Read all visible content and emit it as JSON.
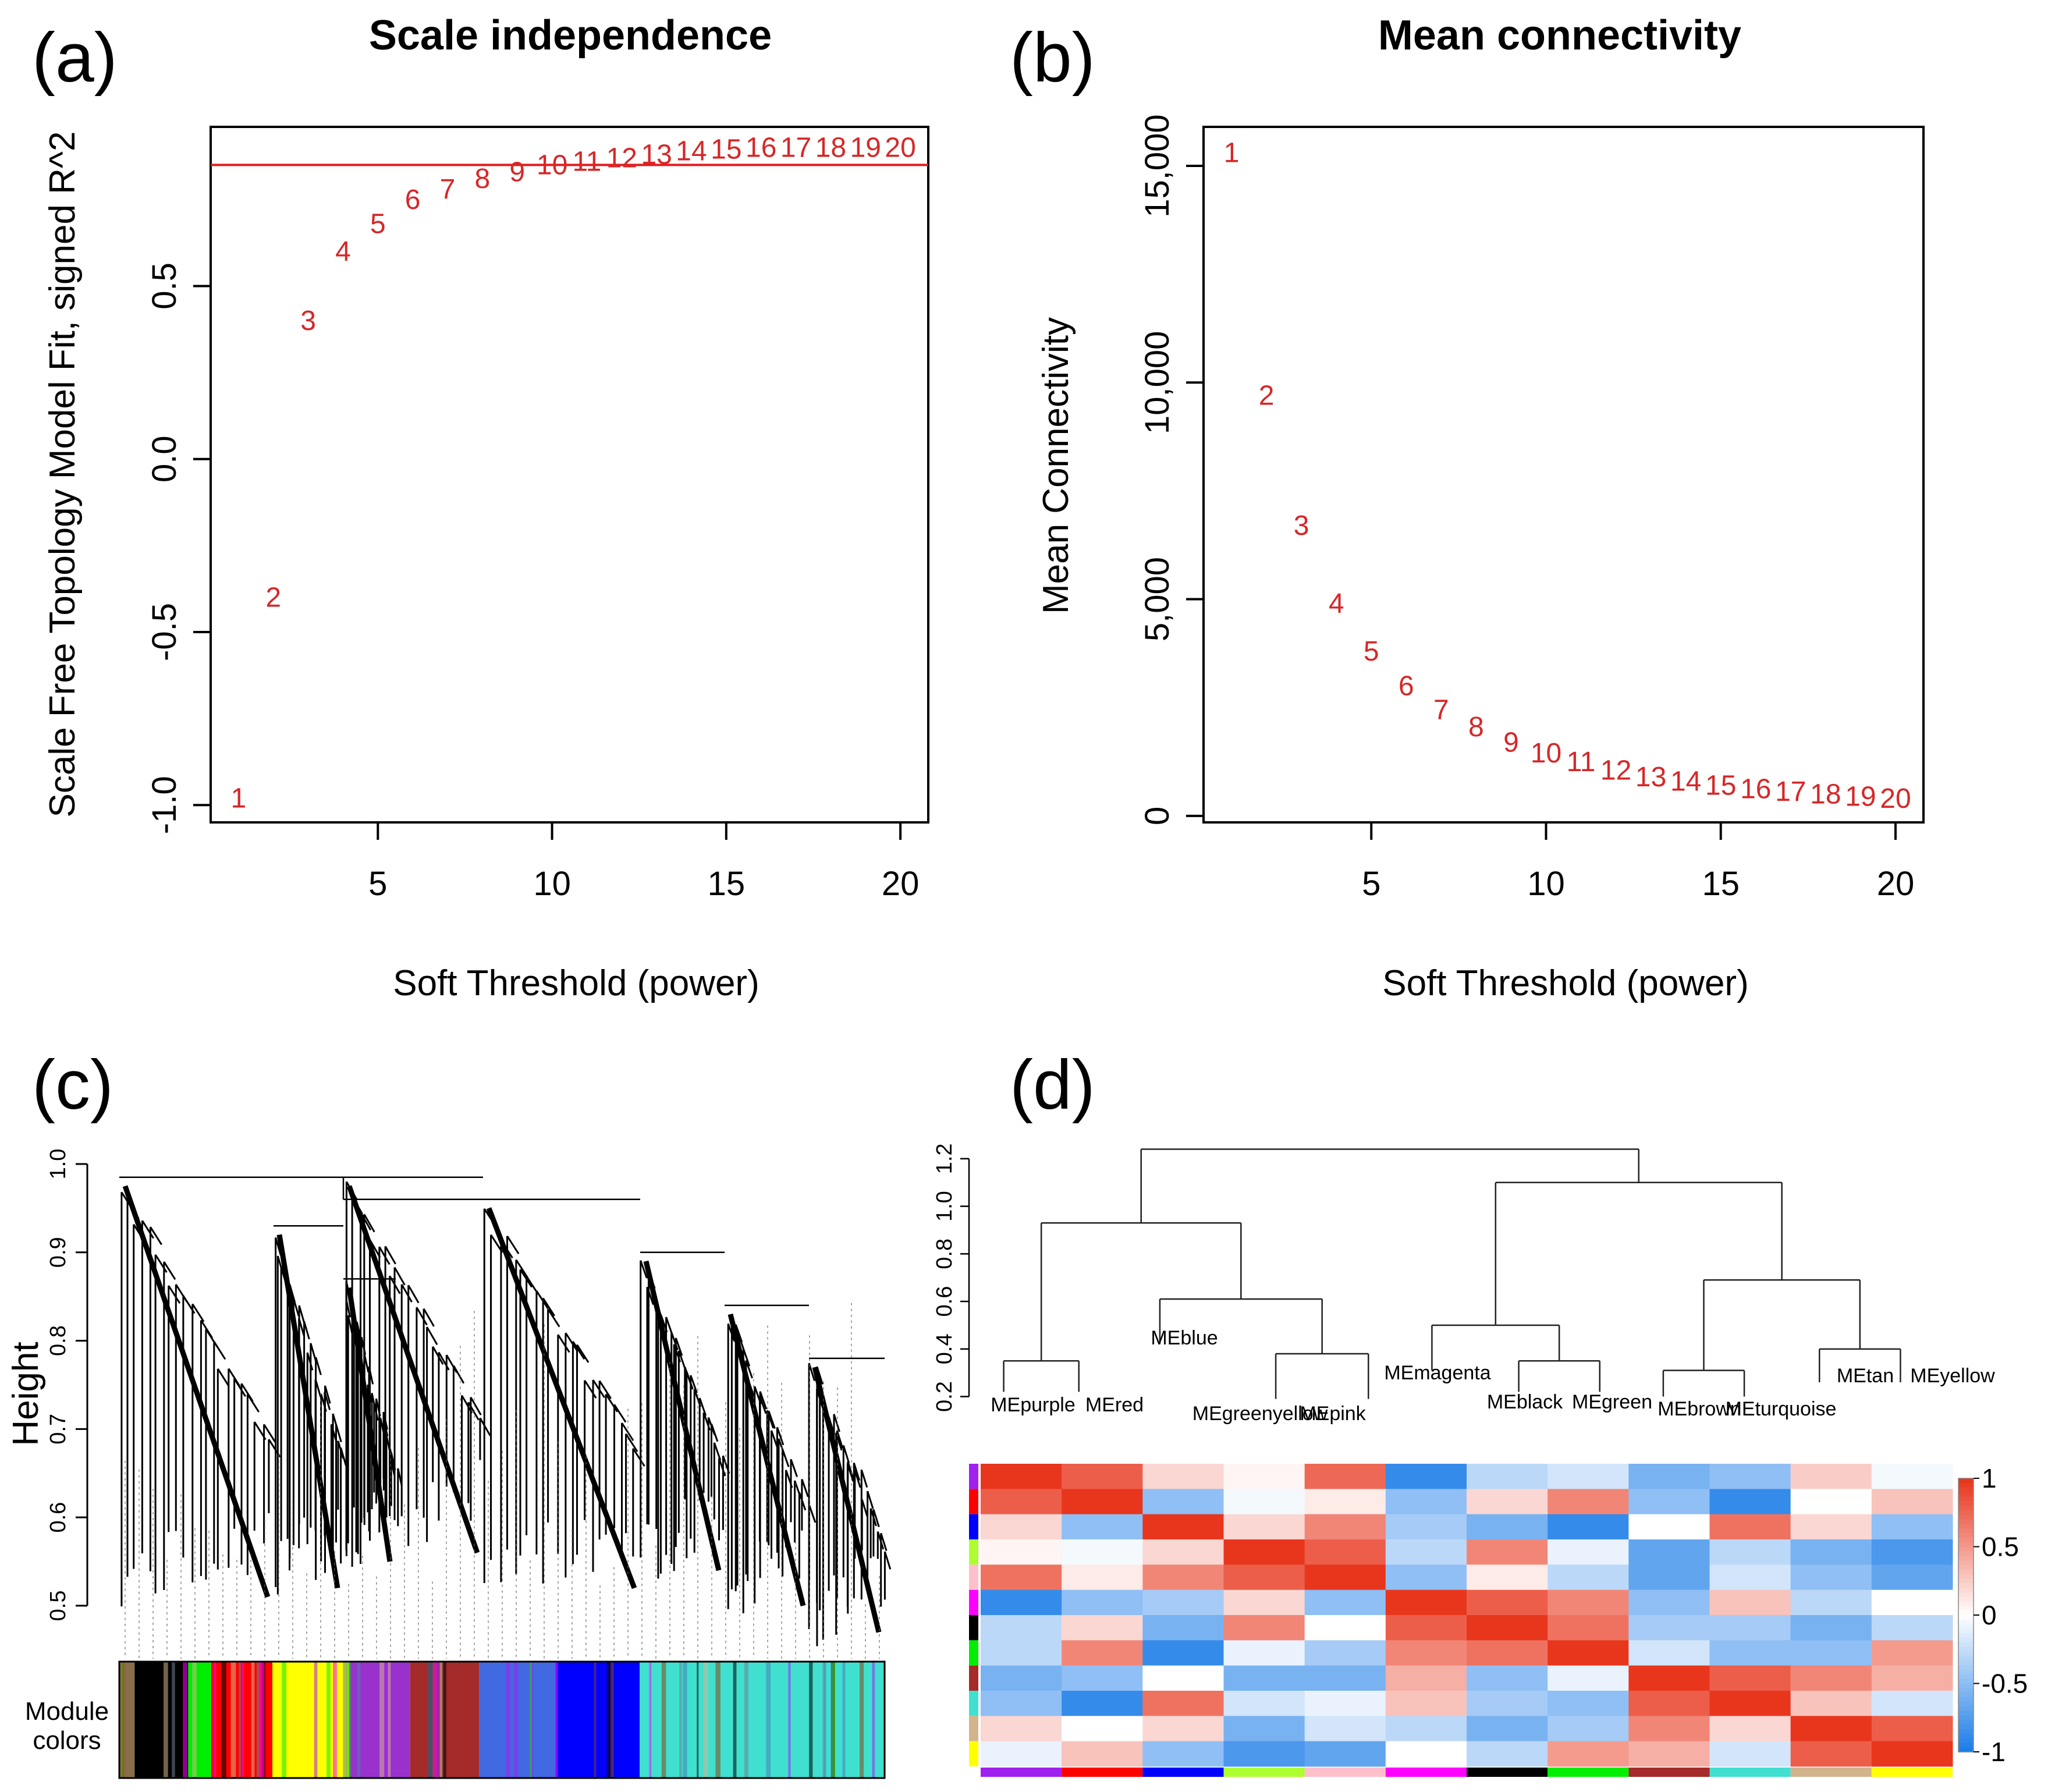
{
  "panels": {
    "a": "(a)",
    "b": "(b)",
    "c": "(c)",
    "d": "(d)"
  },
  "colors": {
    "point": "#d62728",
    "cutoff_line": "#e41a1c",
    "heat_high": "#e8361d",
    "heat_mid": "#ffffff",
    "heat_low": "#1e7ee8"
  },
  "chart_data": [
    {
      "id": "scale-independence",
      "type": "scatter",
      "title": "Scale independence",
      "xlabel": "Soft Threshold (power)",
      "ylabel": "Scale Free Topology Model Fit, signed R^2",
      "xlim": [
        0.2,
        20.8
      ],
      "ylim": [
        -1.05,
        0.96
      ],
      "xticks": [
        "5",
        "10",
        "15",
        "20"
      ],
      "yticks": [
        "-1.0",
        "-0.5",
        "0.0",
        "0.5"
      ],
      "cutoff": 0.85,
      "x": [
        1,
        2,
        3,
        4,
        5,
        6,
        7,
        8,
        9,
        10,
        11,
        12,
        13,
        14,
        15,
        16,
        17,
        18,
        19,
        20
      ],
      "y": [
        -0.98,
        -0.4,
        0.4,
        0.6,
        0.68,
        0.75,
        0.78,
        0.81,
        0.83,
        0.85,
        0.86,
        0.87,
        0.88,
        0.89,
        0.895,
        0.9,
        0.9,
        0.9,
        0.9,
        0.9
      ],
      "point_labels": [
        "1",
        "2",
        "3",
        "4",
        "5",
        "6",
        "7",
        "8",
        "9",
        "10",
        "11",
        "12",
        "13",
        "14",
        "15",
        "16",
        "17",
        "18",
        "19",
        "20"
      ]
    },
    {
      "id": "mean-connectivity",
      "type": "scatter",
      "title": "Mean connectivity",
      "xlabel": "Soft Threshold (power)",
      "ylabel": "Mean Connectivity",
      "xlim": [
        0.2,
        20.8
      ],
      "ylim": [
        -150,
        15900
      ],
      "xticks": [
        "5",
        "10",
        "15",
        "20"
      ],
      "yticks": [
        "0",
        "5,000",
        "10,000",
        "15,000"
      ],
      "x": [
        1,
        2,
        3,
        4,
        5,
        6,
        7,
        8,
        9,
        10,
        11,
        12,
        13,
        14,
        15,
        16,
        17,
        18,
        19,
        20
      ],
      "y": [
        15300,
        9700,
        6700,
        4900,
        3800,
        3000,
        2450,
        2050,
        1700,
        1450,
        1250,
        1050,
        900,
        800,
        700,
        620,
        560,
        500,
        450,
        400
      ],
      "point_labels": [
        "1",
        "2",
        "3",
        "4",
        "5",
        "6",
        "7",
        "8",
        "9",
        "10",
        "11",
        "12",
        "13",
        "14",
        "15",
        "16",
        "17",
        "18",
        "19",
        "20"
      ]
    },
    {
      "id": "gene-dendrogram",
      "type": "dendrogram",
      "ylabel": "Height",
      "ylim": [
        0.44,
        1.0
      ],
      "yticks": [
        "0.5",
        "0.6",
        "0.7",
        "0.8",
        "0.9",
        "1.0"
      ],
      "color_bar_label_1": "Module",
      "color_bar_label_2": "colors",
      "module_color_bands": [
        "#8b6c4a",
        "#000000",
        "#00ee00",
        "#ff0000",
        "#ffff00",
        "#9932cc",
        "#a52a2a",
        "#4169e1",
        "#0000ff",
        "#40e0d0",
        "#8b2323",
        "#40e0d0"
      ],
      "module_color_fractions": [
        0.02,
        0.09,
        0.12,
        0.2,
        0.3,
        0.38,
        0.47,
        0.57,
        0.68,
        0.93,
        0.935,
        1.0
      ]
    },
    {
      "id": "eigengene-dendrogram",
      "type": "dendrogram",
      "ylim": [
        0.15,
        1.3
      ],
      "yticks": [
        "0.2",
        "0.4",
        "0.6",
        "0.8",
        "1.0",
        "1.2"
      ],
      "leaves": [
        "MEpurple",
        "MEred",
        "MEblue",
        "MEgreenyellow",
        "MEpink",
        "MEmagenta",
        "MEblack",
        "MEgreen",
        "MEbrown",
        "MEturquoise",
        "MEtan",
        "MEyellow"
      ],
      "leaf_heights": [
        0.22,
        0.22,
        0.42,
        0.19,
        0.19,
        0.31,
        0.22,
        0.22,
        0.2,
        0.2,
        0.26,
        0.26
      ]
    },
    {
      "id": "eigengene-heatmap",
      "type": "heatmap",
      "zlim": [
        -1,
        1
      ],
      "colorbar_ticks": [
        "1",
        "0.5",
        "0",
        "-0.5",
        "-1"
      ],
      "row_colors": [
        "#a020f0",
        "#ff0000",
        "#0000ff",
        "#adff2f",
        "#ffc0cb",
        "#ff00ff",
        "#000000",
        "#00ee00",
        "#a52a2a",
        "#40e0d0",
        "#d2b48c",
        "#ffff00"
      ],
      "col_colors": [
        "#a020f0",
        "#ff0000",
        "#0000ff",
        "#adff2f",
        "#ffc0cb",
        "#ff00ff",
        "#000000",
        "#00ee00",
        "#a52a2a",
        "#40e0d0",
        "#d2b48c",
        "#ffff00"
      ],
      "values": [
        [
          1.0,
          0.8,
          0.2,
          0.05,
          0.75,
          -0.9,
          -0.3,
          -0.2,
          -0.6,
          -0.5,
          0.25,
          -0.05
        ],
        [
          0.8,
          1.0,
          -0.5,
          -0.05,
          0.1,
          -0.5,
          0.2,
          0.6,
          -0.5,
          -0.9,
          0.0,
          0.3
        ],
        [
          0.2,
          -0.5,
          1.0,
          0.2,
          0.6,
          -0.4,
          -0.6,
          -0.9,
          0.0,
          0.7,
          0.2,
          -0.5
        ],
        [
          0.05,
          -0.05,
          0.2,
          1.0,
          0.8,
          -0.3,
          0.6,
          -0.1,
          -0.7,
          -0.3,
          -0.6,
          -0.8
        ],
        [
          0.7,
          0.1,
          0.6,
          0.8,
          1.0,
          -0.5,
          0.1,
          -0.3,
          -0.7,
          -0.2,
          -0.5,
          -0.7
        ],
        [
          -0.9,
          -0.5,
          -0.4,
          0.2,
          -0.5,
          1.0,
          0.8,
          0.6,
          -0.5,
          0.3,
          -0.3,
          0.0
        ],
        [
          -0.3,
          0.2,
          -0.6,
          0.6,
          0.0,
          0.8,
          1.0,
          0.7,
          -0.4,
          -0.4,
          -0.6,
          -0.3
        ],
        [
          -0.3,
          0.6,
          -0.9,
          -0.1,
          -0.4,
          0.6,
          0.7,
          1.0,
          -0.2,
          -0.5,
          -0.5,
          0.5
        ],
        [
          -0.6,
          -0.5,
          0.0,
          -0.6,
          -0.6,
          0.4,
          -0.5,
          -0.1,
          1.0,
          0.8,
          0.6,
          0.4
        ],
        [
          -0.5,
          -0.9,
          0.7,
          -0.2,
          -0.1,
          0.3,
          -0.4,
          -0.5,
          0.8,
          1.0,
          0.3,
          -0.2
        ],
        [
          0.2,
          0.0,
          0.2,
          -0.6,
          -0.2,
          -0.3,
          -0.6,
          -0.4,
          0.6,
          0.2,
          1.0,
          0.8
        ],
        [
          -0.1,
          0.3,
          -0.5,
          -0.8,
          -0.7,
          0.0,
          -0.3,
          0.5,
          0.4,
          -0.2,
          0.8,
          1.0
        ]
      ]
    }
  ]
}
